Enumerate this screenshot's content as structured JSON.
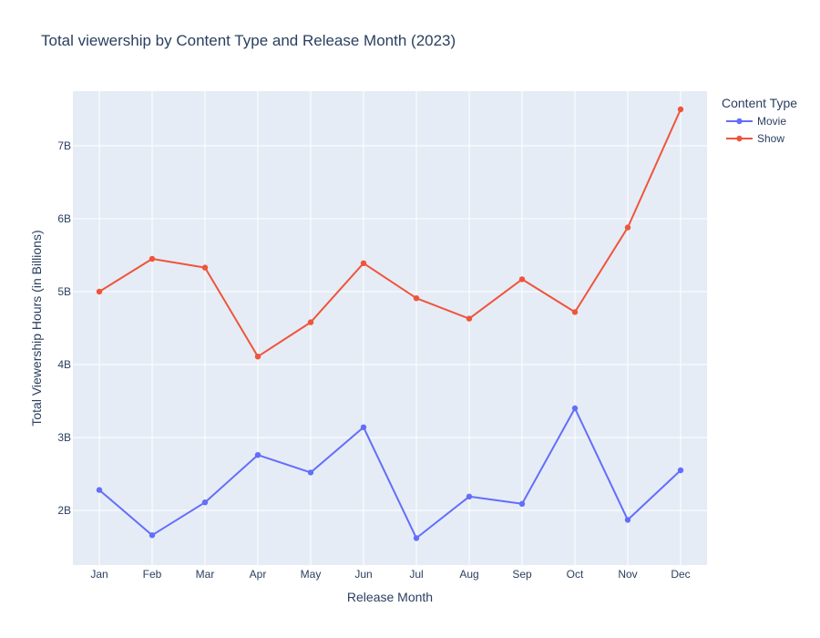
{
  "chart_data": {
    "type": "line",
    "title": "Total viewership by Content Type and Release Month (2023)",
    "xlabel": "Release Month",
    "ylabel": "Total Viewership Hours (in Billions)",
    "categories": [
      "Jan",
      "Feb",
      "Mar",
      "Apr",
      "May",
      "Jun",
      "Jul",
      "Aug",
      "Sep",
      "Oct",
      "Nov",
      "Dec"
    ],
    "ylim": [
      1.25,
      7.75
    ],
    "yticks": [
      2,
      3,
      4,
      5,
      6,
      7
    ],
    "ytick_labels": [
      "2B",
      "3B",
      "4B",
      "5B",
      "6B",
      "7B"
    ],
    "grid": true,
    "legend": {
      "title": "Content Type",
      "position": "top-right"
    },
    "series": [
      {
        "name": "Movie",
        "color": "#636efa",
        "values": [
          2.28,
          1.66,
          2.11,
          2.76,
          2.52,
          3.14,
          1.62,
          2.19,
          2.09,
          3.4,
          1.87,
          2.55
        ]
      },
      {
        "name": "Show",
        "color": "#ef553b",
        "values": [
          5.0,
          5.45,
          5.33,
          4.11,
          4.58,
          5.39,
          4.91,
          4.63,
          5.17,
          4.72,
          5.88,
          7.5
        ]
      }
    ]
  }
}
